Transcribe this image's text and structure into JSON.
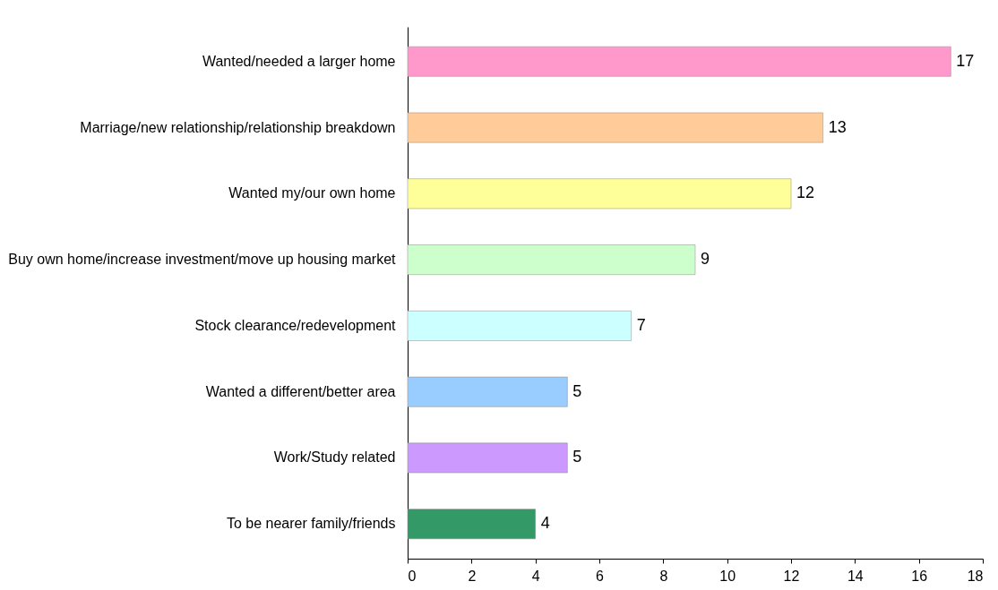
{
  "chart_data": {
    "type": "bar",
    "orientation": "horizontal",
    "categories": [
      "Wanted/needed a larger home",
      "Marriage/new relationship/relationship breakdown",
      "Wanted my/our own home",
      "Buy own home/increase investment/move up housing market",
      "Stock clearance/redevelopment",
      "Wanted a different/better area",
      "Work/Study related",
      "To be nearer family/friends"
    ],
    "values": [
      17,
      13,
      12,
      9,
      7,
      5,
      5,
      4
    ],
    "colors": [
      "#ff99cc",
      "#ffcc99",
      "#ffff99",
      "#ccffcc",
      "#ccffff",
      "#99ccff",
      "#cc99ff",
      "#339966"
    ],
    "xlim": [
      0,
      18
    ],
    "xticks": [
      0,
      2,
      4,
      6,
      8,
      10,
      12,
      14,
      16,
      18
    ],
    "data_labels": true,
    "grid": false
  }
}
